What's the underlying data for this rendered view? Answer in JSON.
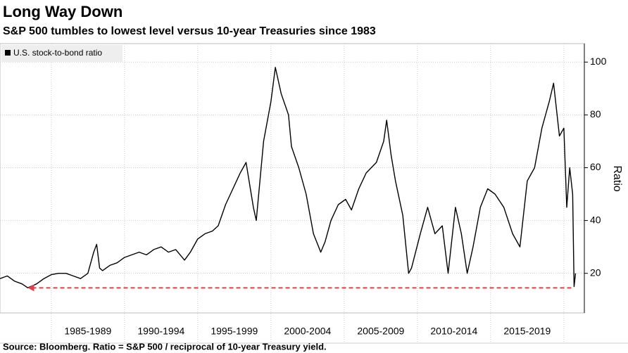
{
  "chart_data": {
    "type": "line",
    "title": "Long Way Down",
    "subtitle": "S&P 500 tumbles to lowest level versus 10-year Treasuries since 1983",
    "y_axis_label": "Ratio",
    "source": "Source: Bloomberg. Ratio = S&P 500 / reciprocal of 10-year Treasury yield.",
    "x": [
      1981.0,
      1981.5,
      1982.0,
      1982.5,
      1982.9,
      1983.5,
      1984.0,
      1984.5,
      1985.0,
      1985.5,
      1986.0,
      1986.5,
      1987.0,
      1987.4,
      1987.6,
      1987.8,
      1988.0,
      1988.5,
      1989.0,
      1989.5,
      1990.0,
      1990.5,
      1991.0,
      1991.5,
      1992.0,
      1992.5,
      1993.0,
      1993.6,
      1994.0,
      1994.5,
      1995.0,
      1995.5,
      1995.9,
      1996.4,
      1996.9,
      1997.4,
      1997.8,
      1998.3,
      1998.5,
      1999.0,
      1999.5,
      1999.8,
      2000.2,
      2000.7,
      2000.9,
      2001.4,
      2001.9,
      2002.4,
      2002.9,
      2003.2,
      2003.6,
      2004.1,
      2004.6,
      2005.0,
      2005.5,
      2006.0,
      2006.7,
      2007.2,
      2007.4,
      2007.7,
      2008.0,
      2008.5,
      2008.9,
      2009.1,
      2009.7,
      2010.2,
      2010.7,
      2011.2,
      2011.6,
      2012.1,
      2012.5,
      2012.9,
      2013.3,
      2013.8,
      2014.3,
      2014.8,
      2015.4,
      2016.0,
      2016.5,
      2017.0,
      2017.5,
      2018.0,
      2018.5,
      2018.8,
      2019.2,
      2019.5,
      2019.7,
      2019.9,
      2020.1,
      2020.2,
      2020.3
    ],
    "series": [
      {
        "name": "U.S. stock-to-bond ratio",
        "color": "#000000",
        "values": [
          18,
          19,
          17,
          16,
          14.5,
          16,
          18,
          19.5,
          20,
          20,
          19,
          18,
          20,
          28,
          31,
          22,
          21,
          23,
          24,
          26,
          27,
          28,
          27,
          29,
          30,
          28,
          29,
          25,
          28,
          33,
          35,
          36,
          38,
          46,
          52,
          58,
          62,
          45,
          40,
          70,
          85,
          98,
          88,
          80,
          68,
          60,
          50,
          35,
          28,
          32,
          40,
          46,
          48,
          44,
          52,
          58,
          62,
          70,
          78,
          65,
          55,
          42,
          20,
          22,
          35,
          45,
          35,
          38,
          20,
          45,
          35,
          20,
          30,
          45,
          52,
          50,
          45,
          35,
          30,
          55,
          60,
          75,
          85,
          92,
          72,
          75,
          45,
          60,
          50,
          15,
          20
        ]
      }
    ],
    "xlim": [
      1981,
      2020.9
    ],
    "xticks": [
      {
        "value": 1987,
        "label": "1985-1989"
      },
      {
        "value": 1992,
        "label": "1990-1994"
      },
      {
        "value": 1997,
        "label": "1995-1999"
      },
      {
        "value": 2002,
        "label": "2000-2004"
      },
      {
        "value": 2007,
        "label": "2005-2009"
      },
      {
        "value": 2012,
        "label": "2010-2014"
      },
      {
        "value": 2017,
        "label": "2015-2019"
      }
    ],
    "ylim": [
      5,
      107
    ],
    "yticks": [
      20,
      40,
      60,
      80,
      100
    ],
    "grid": true,
    "reference_line": {
      "value": 14.5,
      "color": "#d9434e"
    }
  }
}
